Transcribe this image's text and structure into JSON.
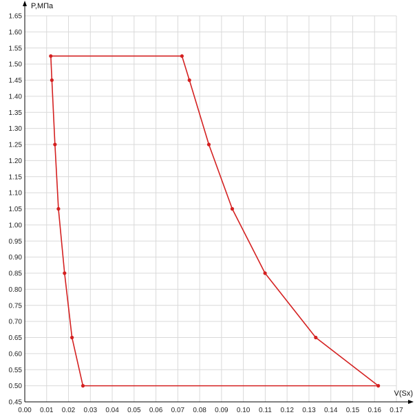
{
  "chart_data": {
    "type": "line",
    "xlabel": "V(Sx)",
    "ylabel": "P,МПа",
    "xlim": [
      0.0,
      0.17
    ],
    "ylim": [
      0.45,
      1.65
    ],
    "x_ticks": [
      "0.00",
      "0.01",
      "0.02",
      "0.03",
      "0.04",
      "0.05",
      "0.06",
      "0.07",
      "0.08",
      "0.09",
      "0.10",
      "0.11",
      "0.12",
      "0.13",
      "0.14",
      "0.15",
      "0.16",
      "0.17"
    ],
    "y_ticks": [
      "0.45",
      "0.50",
      "0.55",
      "0.60",
      "0.65",
      "0.70",
      "0.75",
      "0.80",
      "0.85",
      "0.90",
      "0.95",
      "1.00",
      "1.05",
      "1.10",
      "1.15",
      "1.20",
      "1.25",
      "1.30",
      "1.35",
      "1.40",
      "1.45",
      "1.50",
      "1.55",
      "1.60",
      "1.65"
    ],
    "grid": true,
    "colors": {
      "series": "#d42020",
      "grid": "#d9d9d9",
      "axis": "#000000"
    },
    "series": [
      {
        "x": [
          0.0119,
          0.0124,
          0.0138,
          0.0154,
          0.0182,
          0.0216,
          0.0266,
          0.1617,
          0.1331,
          0.1099,
          0.0949,
          0.0842,
          0.0753,
          0.0719,
          0.0119
        ],
        "y": [
          1.525,
          1.45,
          1.25,
          1.05,
          0.85,
          0.65,
          0.5,
          0.5,
          0.65,
          0.85,
          1.05,
          1.25,
          1.45,
          1.525,
          1.525
        ],
        "markers": [
          true,
          true,
          true,
          true,
          true,
          true,
          true,
          true,
          true,
          true,
          true,
          true,
          true,
          true,
          false
        ]
      }
    ]
  }
}
